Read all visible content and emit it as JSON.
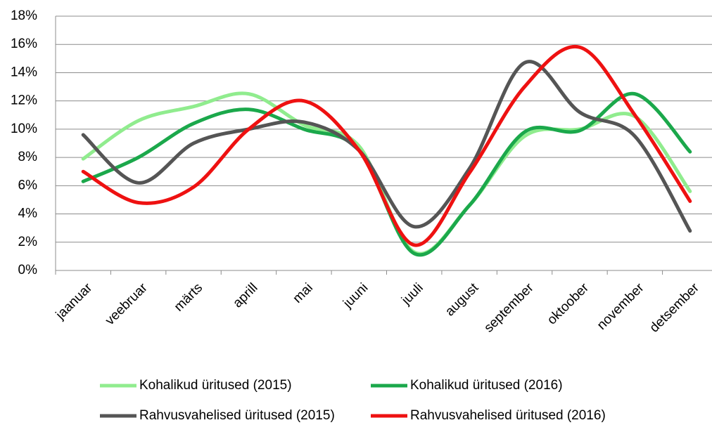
{
  "chart_data": {
    "type": "line",
    "categories": [
      "jaanuar",
      "veebruar",
      "märts",
      "aprill",
      "mai",
      "juuni",
      "juuli",
      "august",
      "september",
      "oktoober",
      "november",
      "detsember"
    ],
    "series": [
      {
        "name": "Kohalikud üritused (2015)",
        "color": "#90ec8e",
        "values": [
          7.9,
          10.6,
          11.6,
          12.5,
          10.3,
          8.8,
          1.3,
          4.6,
          9.5,
          10.0,
          10.9,
          5.6
        ]
      },
      {
        "name": "Kohalikud üritused (2016)",
        "color": "#1ba84b",
        "values": [
          6.3,
          8.0,
          10.4,
          11.4,
          10.0,
          8.5,
          1.2,
          4.6,
          9.8,
          9.9,
          12.5,
          8.4
        ]
      },
      {
        "name": "Rahvusvahelised üritused (2015)",
        "color": "#555555",
        "values": [
          9.6,
          6.2,
          9.0,
          10.0,
          10.5,
          8.5,
          3.1,
          7.2,
          14.7,
          11.2,
          9.5,
          2.8
        ]
      },
      {
        "name": "Rahvusvahelised üritused (2016)",
        "color": "#ee1111",
        "values": [
          7.0,
          4.8,
          5.9,
          10.0,
          12.0,
          8.5,
          1.8,
          6.9,
          13.0,
          15.8,
          11.0,
          4.9
        ]
      }
    ],
    "ylim": [
      0,
      18
    ],
    "yticks": [
      {
        "value": 0,
        "label": "0%"
      },
      {
        "value": 2,
        "label": "2%"
      },
      {
        "value": 4,
        "label": "4%"
      },
      {
        "value": 6,
        "label": "6%"
      },
      {
        "value": 8,
        "label": "8%"
      },
      {
        "value": 10,
        "label": "10%"
      },
      {
        "value": 12,
        "label": "12%"
      },
      {
        "value": 14,
        "label": "14%"
      },
      {
        "value": 16,
        "label": "16%"
      },
      {
        "value": 18,
        "label": "18%"
      }
    ],
    "grid": true,
    "legend": "bottom"
  }
}
